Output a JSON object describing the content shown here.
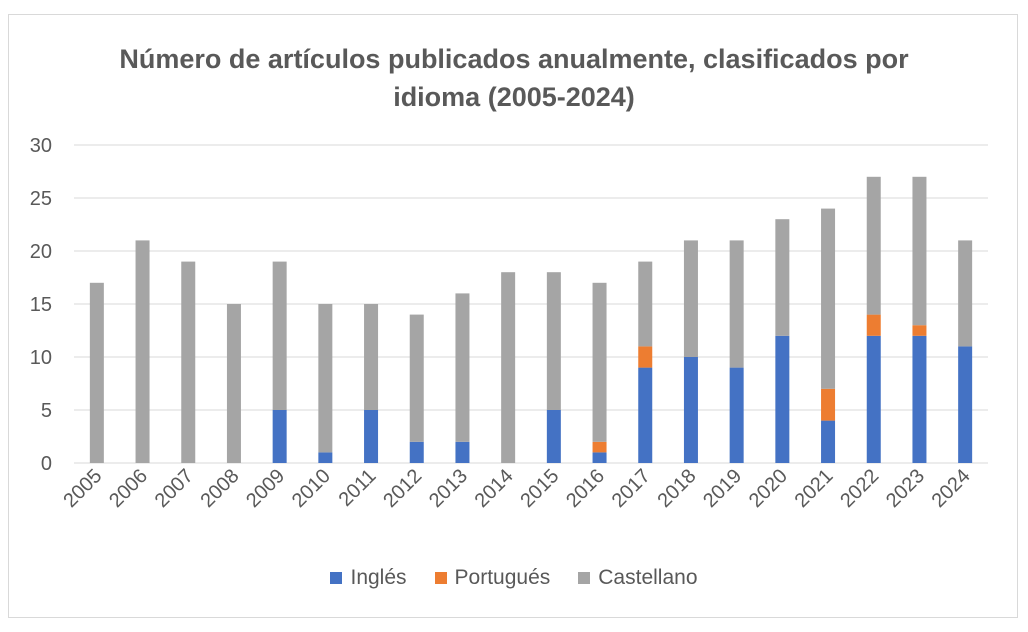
{
  "chart_data": {
    "type": "bar",
    "stacked": true,
    "title_lines": [
      "Número de artículos publicados anualmente, clasificados por",
      "idioma (2005-2024)"
    ],
    "categories": [
      "2005",
      "2006",
      "2007",
      "2008",
      "2009",
      "2010",
      "2011",
      "2012",
      "2013",
      "2014",
      "2015",
      "2016",
      "2017",
      "2018",
      "2019",
      "2020",
      "2021",
      "2022",
      "2023",
      "2024"
    ],
    "series": [
      {
        "name": "Inglés",
        "color": "#4472c4",
        "values": [
          0,
          0,
          0,
          0,
          5,
          1,
          5,
          2,
          2,
          0,
          5,
          1,
          9,
          10,
          9,
          12,
          4,
          12,
          12,
          11
        ]
      },
      {
        "name": "Portugués",
        "color": "#ed7d31",
        "values": [
          0,
          0,
          0,
          0,
          0,
          0,
          0,
          0,
          0,
          0,
          0,
          1,
          2,
          0,
          0,
          0,
          3,
          2,
          1,
          0
        ]
      },
      {
        "name": "Castellano",
        "color": "#a5a5a5",
        "values": [
          17,
          21,
          19,
          15,
          14,
          14,
          10,
          12,
          14,
          18,
          13,
          15,
          8,
          11,
          12,
          11,
          17,
          13,
          14,
          10
        ]
      }
    ],
    "yticks": [
      "0",
      "5",
      "10",
      "15",
      "20",
      "25",
      "30"
    ],
    "ylim": [
      0,
      30
    ],
    "grid": true,
    "legend": "bottom"
  }
}
